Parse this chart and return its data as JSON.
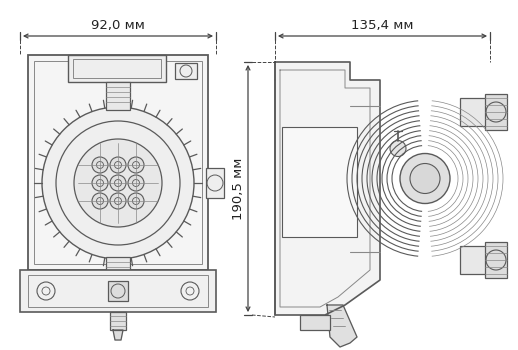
{
  "bg_color": "#ffffff",
  "line_color": "#5a5a5a",
  "line_color2": "#888888",
  "dim_color": "#444444",
  "dim_text_color": "#222222",
  "dim1_label": "92,0 мм",
  "dim2_label": "135,4 мм",
  "dim3_label": "190,5 мм",
  "figsize": [
    5.18,
    3.5
  ],
  "dpi": 100,
  "font_size": 9.5
}
